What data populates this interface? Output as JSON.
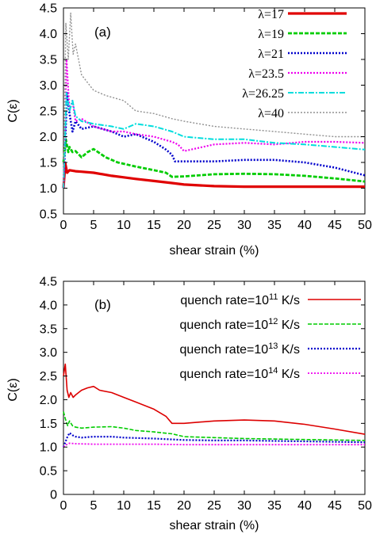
{
  "chart_data": [
    {
      "type": "line",
      "panel_label": "(a)",
      "xlabel": "shear strain (%)",
      "ylabel": "C(ε)",
      "xlim": [
        0,
        50
      ],
      "ylim": [
        0.5,
        4.5
      ],
      "xticks": [
        0,
        5,
        10,
        15,
        20,
        25,
        30,
        35,
        40,
        45,
        50
      ],
      "yticks": [
        0.5,
        1.0,
        1.5,
        2.0,
        2.5,
        3.0,
        3.5,
        4.0,
        4.5
      ],
      "ytick_labels": [
        "0.5",
        "1.0",
        "1.5",
        "2.0",
        "2.5",
        "3.0",
        "3.5",
        "4.0",
        "4.5"
      ],
      "legend_position": "top-right",
      "grid": false,
      "series": [
        {
          "name": "λ=17",
          "color": "#e00000",
          "style": "solid",
          "width": 3.2,
          "x": [
            0,
            0.3,
            0.6,
            1,
            2,
            3,
            5,
            8,
            10,
            12,
            15,
            18,
            20,
            25,
            30,
            35,
            40,
            45,
            50
          ],
          "y": [
            1.0,
            1.48,
            1.3,
            1.35,
            1.33,
            1.32,
            1.3,
            1.24,
            1.21,
            1.18,
            1.14,
            1.1,
            1.07,
            1.04,
            1.03,
            1.03,
            1.03,
            1.03,
            1.03
          ]
        },
        {
          "name": "λ=19",
          "color": "#00cc00",
          "style": "dashed",
          "width": 2.8,
          "x": [
            0,
            0.4,
            0.8,
            1,
            1.5,
            2,
            3,
            4,
            5,
            6,
            7,
            9,
            12,
            15,
            17,
            18,
            20,
            25,
            30,
            35,
            40,
            45,
            50
          ],
          "y": [
            1.5,
            1.95,
            1.7,
            1.8,
            1.7,
            1.72,
            1.6,
            1.7,
            1.76,
            1.68,
            1.6,
            1.5,
            1.42,
            1.35,
            1.3,
            1.22,
            1.23,
            1.27,
            1.28,
            1.27,
            1.24,
            1.19,
            1.13
          ]
        },
        {
          "name": "λ=21",
          "color": "#0000cc",
          "style": "dotted",
          "width": 2.6,
          "x": [
            0,
            0.6,
            1,
            1.5,
            2,
            3,
            5,
            8,
            10,
            12,
            15,
            17,
            18,
            18.5,
            20,
            25,
            30,
            35,
            40,
            45,
            50
          ],
          "y": [
            1.0,
            2.85,
            2.45,
            2.1,
            2.3,
            2.15,
            2.2,
            2.1,
            2.0,
            2.05,
            1.9,
            1.75,
            1.65,
            1.52,
            1.52,
            1.52,
            1.55,
            1.55,
            1.5,
            1.4,
            1.25
          ]
        },
        {
          "name": "λ=23.5",
          "color": "#ee00ee",
          "style": "dotted",
          "width": 2.2,
          "x": [
            0,
            0.5,
            1,
            1.5,
            2,
            3,
            5,
            8,
            10,
            12,
            15,
            18,
            19,
            20,
            25,
            30,
            35,
            40,
            45,
            50
          ],
          "y": [
            1.0,
            3.5,
            2.5,
            2.7,
            2.3,
            2.35,
            2.2,
            2.1,
            2.1,
            2.05,
            2.0,
            1.9,
            1.85,
            1.72,
            1.85,
            1.88,
            1.85,
            1.9,
            1.9,
            1.88
          ]
        },
        {
          "name": "λ=26.25",
          "color": "#00dddd",
          "style": "dashdot",
          "width": 2.0,
          "x": [
            0,
            0.5,
            1,
            1.5,
            2,
            3,
            5,
            8,
            10,
            12,
            15,
            18,
            20,
            25,
            30,
            35,
            40,
            45,
            50
          ],
          "y": [
            1.0,
            2.85,
            2.5,
            2.7,
            2.4,
            2.3,
            2.25,
            2.2,
            2.15,
            2.25,
            2.2,
            2.1,
            2.0,
            1.95,
            1.95,
            1.88,
            1.85,
            1.8,
            1.75
          ]
        },
        {
          "name": "λ=40",
          "color": "#909090",
          "style": "dotted",
          "width": 1.4,
          "x": [
            0,
            0.4,
            0.8,
            1.2,
            1.6,
            2,
            3,
            5,
            7,
            10,
            12,
            15,
            18,
            20,
            25,
            30,
            35,
            40,
            45,
            50
          ],
          "y": [
            1.0,
            4.2,
            3.5,
            4.4,
            3.6,
            3.8,
            3.2,
            2.9,
            2.8,
            2.7,
            2.5,
            2.45,
            2.35,
            2.3,
            2.2,
            2.15,
            2.1,
            2.05,
            2.0,
            2.0
          ]
        }
      ]
    },
    {
      "type": "line",
      "panel_label": "(b)",
      "xlabel": "shear strain (%)",
      "ylabel": "C(ε)",
      "xlim": [
        0,
        50
      ],
      "ylim": [
        0,
        4.5
      ],
      "xticks": [
        0,
        5,
        10,
        15,
        20,
        25,
        30,
        35,
        40,
        45,
        50
      ],
      "yticks": [
        0,
        0.5,
        1.0,
        1.5,
        2.0,
        2.5,
        3.0,
        3.5,
        4.0,
        4.5
      ],
      "ytick_labels": [
        "0",
        "0.5",
        "1.0",
        "1.5",
        "2.0",
        "2.5",
        "3.0",
        "3.5",
        "4.0",
        "4.5"
      ],
      "legend_position": "top-right",
      "grid": false,
      "series": [
        {
          "label_prefix": "quench rate=10",
          "exponent": "11",
          "label_suffix": " K/s",
          "color": "#dd0000",
          "style": "solid",
          "width": 1.6,
          "x": [
            0,
            0.3,
            0.6,
            0.9,
            1.2,
            1.6,
            2,
            3,
            4,
            5,
            6,
            8,
            10,
            12,
            15,
            17,
            18,
            20,
            25,
            30,
            35,
            40,
            45,
            50
          ],
          "y": [
            2.5,
            2.75,
            2.2,
            2.05,
            2.15,
            2.05,
            2.1,
            2.2,
            2.25,
            2.28,
            2.2,
            2.15,
            2.05,
            1.95,
            1.8,
            1.65,
            1.5,
            1.5,
            1.55,
            1.57,
            1.55,
            1.48,
            1.38,
            1.27
          ]
        },
        {
          "label_prefix": "quench rate=10",
          "exponent": "12",
          "label_suffix": " K/s",
          "color": "#00cc00",
          "style": "dashed",
          "width": 1.6,
          "x": [
            0,
            0.3,
            0.7,
            1,
            1.5,
            2,
            3,
            5,
            8,
            10,
            12,
            15,
            18,
            20,
            25,
            30,
            35,
            40,
            45,
            50
          ],
          "y": [
            1.75,
            1.6,
            1.45,
            1.55,
            1.45,
            1.42,
            1.4,
            1.42,
            1.43,
            1.4,
            1.35,
            1.32,
            1.28,
            1.22,
            1.2,
            1.18,
            1.17,
            1.16,
            1.15,
            1.14
          ]
        },
        {
          "label_prefix": "quench rate=10",
          "exponent": "13",
          "label_suffix": " K/s",
          "color": "#0000cc",
          "style": "dotted",
          "width": 2.2,
          "x": [
            0,
            0.3,
            0.6,
            1,
            1.5,
            2,
            3,
            5,
            8,
            10,
            15,
            20,
            25,
            30,
            35,
            40,
            45,
            50
          ],
          "y": [
            1.0,
            1.1,
            1.2,
            1.3,
            1.25,
            1.22,
            1.2,
            1.22,
            1.22,
            1.2,
            1.18,
            1.15,
            1.14,
            1.14,
            1.13,
            1.12,
            1.11,
            1.1
          ]
        },
        {
          "label_prefix": "quench rate=10",
          "exponent": "14",
          "label_suffix": " K/s",
          "color": "#ee00ee",
          "style": "dotted",
          "width": 1.8,
          "x": [
            0,
            0.5,
            1,
            2,
            5,
            10,
            15,
            20,
            25,
            30,
            35,
            40,
            45,
            50
          ],
          "y": [
            1.0,
            1.05,
            1.08,
            1.07,
            1.06,
            1.06,
            1.06,
            1.05,
            1.05,
            1.05,
            1.05,
            1.05,
            1.05,
            1.05
          ]
        }
      ]
    }
  ]
}
